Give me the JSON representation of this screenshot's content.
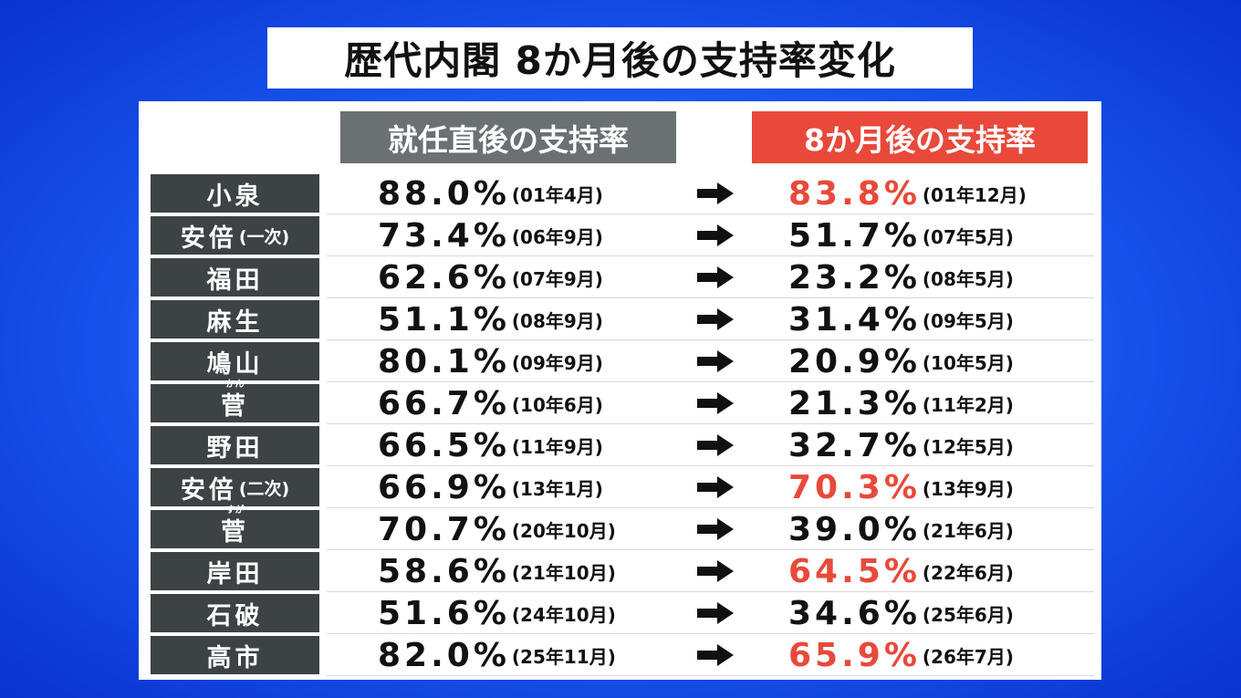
{
  "title": "歴代内閣 8か月後の支持率変化",
  "headers": {
    "before": "就任直後の支持率",
    "after": "8か月後の支持率"
  },
  "colors": {
    "background": "#1c5cf4",
    "accent_red": "#e8493a",
    "name_bg": "#3d4244",
    "header_gray": "#6b7073"
  },
  "arrow_icon": "right-arrow-icon",
  "rows": [
    {
      "name": "小泉",
      "suffix": "",
      "ruby": "",
      "before_pct": "88.0%",
      "before_date": "(01年4月)",
      "after_pct": "83.8%",
      "after_date": "(01年12月)",
      "highlight": true
    },
    {
      "name": "安倍",
      "suffix": "(一次)",
      "ruby": "",
      "before_pct": "73.4%",
      "before_date": "(06年9月)",
      "after_pct": "51.7%",
      "after_date": "(07年5月)",
      "highlight": false
    },
    {
      "name": "福田",
      "suffix": "",
      "ruby": "",
      "before_pct": "62.6%",
      "before_date": "(07年9月)",
      "after_pct": "23.2%",
      "after_date": "(08年5月)",
      "highlight": false
    },
    {
      "name": "麻生",
      "suffix": "",
      "ruby": "",
      "before_pct": "51.1%",
      "before_date": "(08年9月)",
      "after_pct": "31.4%",
      "after_date": "(09年5月)",
      "highlight": false
    },
    {
      "name": "鳩山",
      "suffix": "",
      "ruby": "",
      "before_pct": "80.1%",
      "before_date": "(09年9月)",
      "after_pct": "20.9%",
      "after_date": "(10年5月)",
      "highlight": false
    },
    {
      "name": "菅",
      "suffix": "",
      "ruby": "かん",
      "before_pct": "66.7%",
      "before_date": "(10年6月)",
      "after_pct": "21.3%",
      "after_date": "(11年2月)",
      "highlight": false
    },
    {
      "name": "野田",
      "suffix": "",
      "ruby": "",
      "before_pct": "66.5%",
      "before_date": "(11年9月)",
      "after_pct": "32.7%",
      "after_date": "(12年5月)",
      "highlight": false
    },
    {
      "name": "安倍",
      "suffix": "(二次)",
      "ruby": "",
      "before_pct": "66.9%",
      "before_date": "(13年1月)",
      "after_pct": "70.3%",
      "after_date": "(13年9月)",
      "highlight": true
    },
    {
      "name": "菅",
      "suffix": "",
      "ruby": "すが",
      "before_pct": "70.7%",
      "before_date": "(20年10月)",
      "after_pct": "39.0%",
      "after_date": "(21年6月)",
      "highlight": false
    },
    {
      "name": "岸田",
      "suffix": "",
      "ruby": "",
      "before_pct": "58.6%",
      "before_date": "(21年10月)",
      "after_pct": "64.5%",
      "after_date": "(22年6月)",
      "highlight": true
    },
    {
      "name": "石破",
      "suffix": "",
      "ruby": "",
      "before_pct": "51.6%",
      "before_date": "(24年10月)",
      "after_pct": "34.6%",
      "after_date": "(25年6月)",
      "highlight": false
    },
    {
      "name": "高市",
      "suffix": "",
      "ruby": "",
      "before_pct": "82.0%",
      "before_date": "(25年11月)",
      "after_pct": "65.9%",
      "after_date": "(26年7月)",
      "highlight": true
    }
  ]
}
